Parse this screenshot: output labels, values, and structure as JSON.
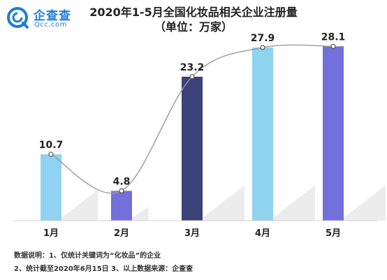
{
  "header": {
    "logo_cn": "企查查",
    "logo_en": "Qcc.com",
    "title": "2020年1-5月全国化妆品相关企业注册量",
    "subtitle": "（单位：万家）"
  },
  "notes": {
    "line1": "数据说明：1、仅统计关键词为“化妆品”的企业",
    "line2": "2、统计截至2020年6月15日 3、以上数据来源：企查查"
  },
  "colors": {
    "bar_light": "#8fd3f0",
    "bar_mid": "#7370dc",
    "bar_dark": "#3b4279",
    "brand": "#1e7dd6"
  },
  "chart_data": {
    "type": "bar",
    "categories": [
      "1月",
      "2月",
      "3月",
      "4月",
      "5月"
    ],
    "values": [
      10.7,
      4.8,
      23.2,
      27.9,
      28.1
    ],
    "bar_colors": [
      "#8fd3f0",
      "#7370dc",
      "#3b4279",
      "#8fd3f0",
      "#7370dc"
    ],
    "title": "2020年1-5月全国化妆品相关企业注册量",
    "subtitle": "（单位：万家）",
    "overlay_line": "smooth",
    "ylim": [
      0,
      30.5
    ],
    "grid": false,
    "legend": "none"
  }
}
